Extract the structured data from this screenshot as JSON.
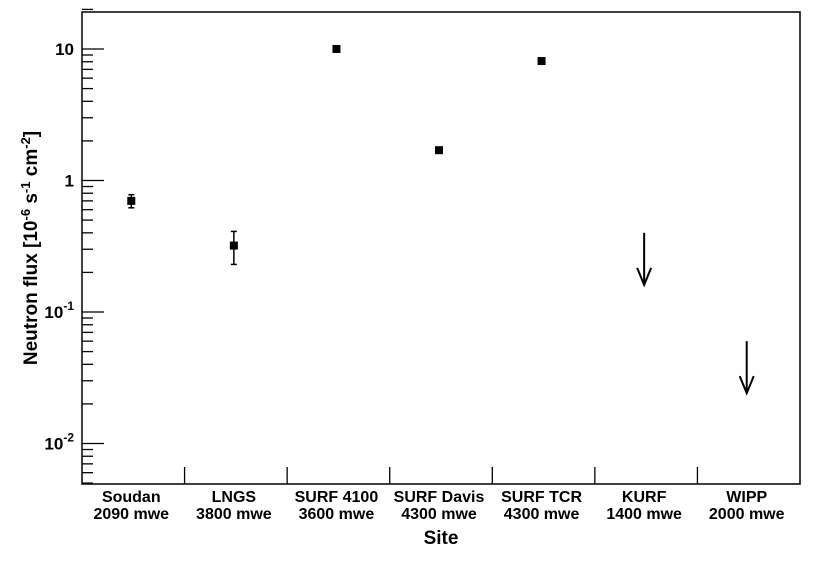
{
  "chart_data": {
    "type": "scatter",
    "xlabel": "Site",
    "ylabel": "Neutron flux [10⁻⁶ s⁻¹ cm⁻²]",
    "ylabel_parts": {
      "base": "Neutron flux [10",
      "exp1": "-6",
      "mid1": " s",
      "exp2": "-1",
      "mid2": " cm",
      "exp3": "-2",
      "end": "]"
    },
    "yscale": "log",
    "ylim": [
      0.005,
      20
    ],
    "y_ticks": [
      {
        "value": 0.01,
        "base": "10",
        "exp": "-2"
      },
      {
        "value": 0.1,
        "base": "10",
        "exp": "-1"
      },
      {
        "value": 1,
        "base": "1",
        "exp": ""
      },
      {
        "value": 10,
        "base": "10",
        "exp": ""
      }
    ],
    "categories": [
      {
        "name": "Soudan",
        "depth": "2090 mwe"
      },
      {
        "name": "LNGS",
        "depth": "3800 mwe"
      },
      {
        "name": "SURF 4100",
        "depth": "3600 mwe"
      },
      {
        "name": "SURF Davis",
        "depth": "4300 mwe"
      },
      {
        "name": "SURF TCR",
        "depth": "4300 mwe"
      },
      {
        "name": "KURF",
        "depth": "1400 mwe"
      },
      {
        "name": "WIPP",
        "depth": "2000 mwe"
      }
    ],
    "points": [
      {
        "site": "Soudan",
        "y": 0.7,
        "err_low": 0.62,
        "err_high": 0.78
      },
      {
        "site": "LNGS",
        "y": 0.32,
        "err_low": 0.23,
        "err_high": 0.41
      },
      {
        "site": "SURF 4100",
        "y": 10.0,
        "err_low": 10.0,
        "err_high": 10.0
      },
      {
        "site": "SURF Davis",
        "y": 1.7,
        "err_low": 1.62,
        "err_high": 1.78
      },
      {
        "site": "SURF TCR",
        "y": 8.1,
        "err_low": 8.1,
        "err_high": 8.1
      }
    ],
    "upper_limits": [
      {
        "site": "KURF",
        "y": 0.4
      },
      {
        "site": "WIPP",
        "y": 0.06
      }
    ],
    "grid": false,
    "legend": "none"
  }
}
